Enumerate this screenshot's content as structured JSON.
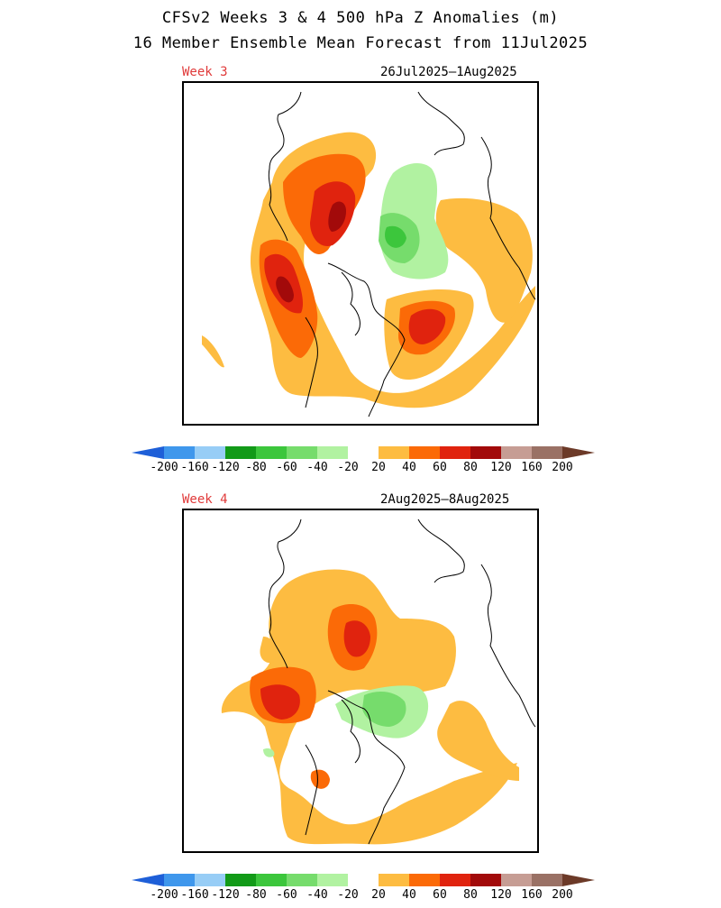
{
  "title_line1": "CFSv2 Weeks 3 & 4 500 hPa Z Anomalies (m)",
  "title_line2": "16 Member Ensemble Mean Forecast from 11Jul2025",
  "panels": [
    {
      "week": "Week 3",
      "date_range": "26Jul2025—1Aug2025"
    },
    {
      "week": "Week 4",
      "date_range": "2Aug2025—8Aug2025"
    }
  ],
  "colorbar": {
    "labels": [
      "-200",
      "-160",
      "-120",
      "-80",
      "-60",
      "-40",
      "-20",
      "20",
      "40",
      "60",
      "80",
      "120",
      "160",
      "200"
    ],
    "colors": [
      "#1e5fd8",
      "#3f97ec",
      "#97cdf6",
      "#129a18",
      "#3cc63c",
      "#76dc6c",
      "#b1f2a1",
      "#ffffff",
      "#fdbc41",
      "#fb6a07",
      "#e0230e",
      "#a20a0a",
      "#c69d94",
      "#9a7165",
      "#6c3a28"
    ]
  },
  "legend_colors": {
    "orange_light": "#fdbc41",
    "orange": "#fb6a07",
    "red": "#e0230e",
    "dark_red": "#a20a0a",
    "green_pale": "#b1f2a1",
    "green_light": "#76dc6c",
    "green": "#3cc63c"
  }
}
